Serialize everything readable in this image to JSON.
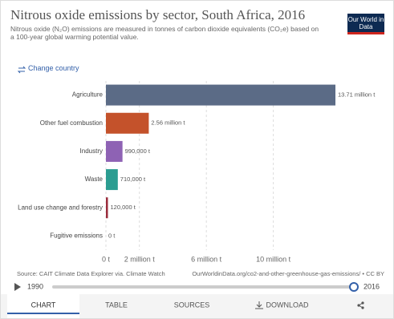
{
  "chart_data": {
    "type": "bar",
    "orientation": "horizontal",
    "title": "Nitrous oxide emissions by sector, South Africa, 2016",
    "subtitle": "Nitrous oxide (N₂O) emissions are measured in tonnes of carbon dioxide equivalents (CO₂e) based on a 100-year global warming potential value.",
    "categories": [
      "Agriculture",
      "Other fuel combustion",
      "Industry",
      "Waste",
      "Land use change and forestry",
      "Fugitive emissions"
    ],
    "values": [
      13710000,
      2560000,
      990000,
      710000,
      120000,
      0
    ],
    "value_labels": [
      "13.71 million t",
      "2.56 million t",
      "990,000 t",
      "710,000 t",
      "120,000 t",
      "0 t"
    ],
    "colors": [
      "#5b6b86",
      "#c4522b",
      "#8e62b4",
      "#2b9d91",
      "#9a2c3c",
      null
    ],
    "xlim": [
      0,
      13710000
    ],
    "xticks": [
      {
        "value": 0,
        "label": "0 t"
      },
      {
        "value": 2000000,
        "label": "2 million t"
      },
      {
        "value": 6000000,
        "label": "6 million t"
      },
      {
        "value": 10000000,
        "label": "10 million t"
      }
    ],
    "grid": true,
    "source": "Source: CAIT Climate Data Explorer via. Climate Watch",
    "url": "OurWorldinData.org/co2-and-other-greenhouse-gas-emissions/ • CC BY"
  },
  "logo": "Our World in Data",
  "change_country": "Change country",
  "timeline": {
    "start": "1990",
    "end": "2016"
  },
  "tabs": [
    "CHART",
    "TABLE",
    "SOURCES",
    "DOWNLOAD"
  ]
}
